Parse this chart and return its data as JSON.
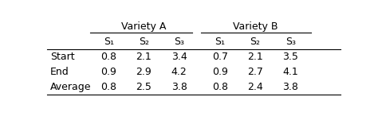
{
  "variety_a_label": "Variety A",
  "variety_b_label": "Variety B",
  "sub_headers": [
    "S₁",
    "S₂",
    "S₃",
    "S₁",
    "S₂",
    "S₃"
  ],
  "row_labels": [
    "Start",
    "End",
    "Average"
  ],
  "variety_a": [
    [
      "0.8",
      "2.1",
      "3.4"
    ],
    [
      "0.9",
      "2.9",
      "4.2"
    ],
    [
      "0.8",
      "2.5",
      "3.8"
    ]
  ],
  "variety_b": [
    [
      "0.7",
      "2.1",
      "3.5"
    ],
    [
      "0.9",
      "2.7",
      "4.1"
    ],
    [
      "0.8",
      "2.4",
      "3.8"
    ]
  ],
  "bg_color": "#ffffff",
  "text_color": "#000000",
  "font_size": 9.0,
  "figsize": [
    4.74,
    1.51
  ],
  "dpi": 100
}
